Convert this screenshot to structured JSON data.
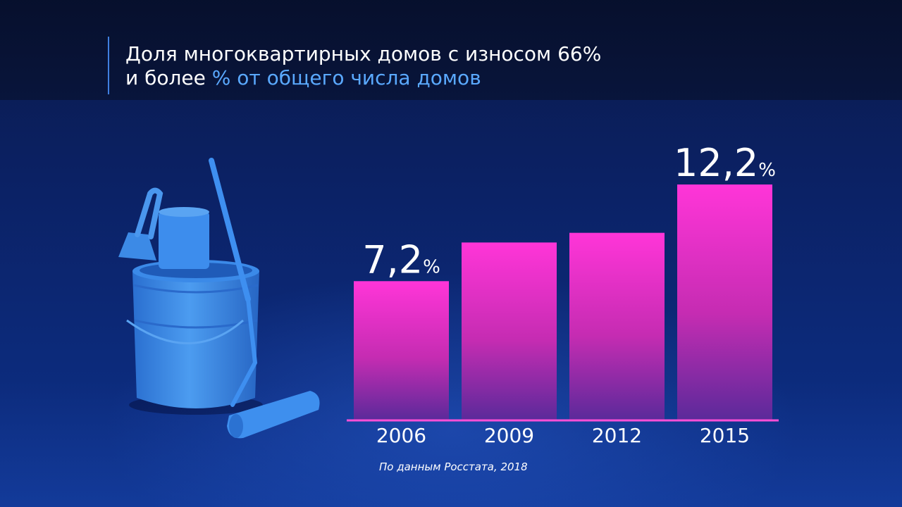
{
  "title": {
    "line1": "Доля многоквартирных домов с износом 66%",
    "line2_main": "и более",
    "line2_accent": "% от общего числа домов"
  },
  "source": "По данным Росстата, 2018",
  "colors": {
    "bar_top": "#ff35d8",
    "bar_bottom": "#6a2a9a",
    "axis": "#ff4fd6",
    "accent_text": "#5aa9ff",
    "illustration": "#3a8ae6"
  },
  "illustration": {
    "icon": "paint-bucket-with-scraper-and-roller-icon"
  },
  "chart_data": {
    "type": "bar",
    "categories": [
      "2006",
      "2009",
      "2012",
      "2015"
    ],
    "values": [
      7.2,
      9.2,
      9.7,
      12.2
    ],
    "labels": [
      "7,2",
      "",
      "",
      "12,2"
    ],
    "label_unit": "%",
    "title": "Доля многоквартирных домов с износом 66% и более",
    "ylabel": "% от общего числа домов",
    "ylim": [
      0,
      14
    ],
    "grid": false,
    "legend": "none"
  }
}
